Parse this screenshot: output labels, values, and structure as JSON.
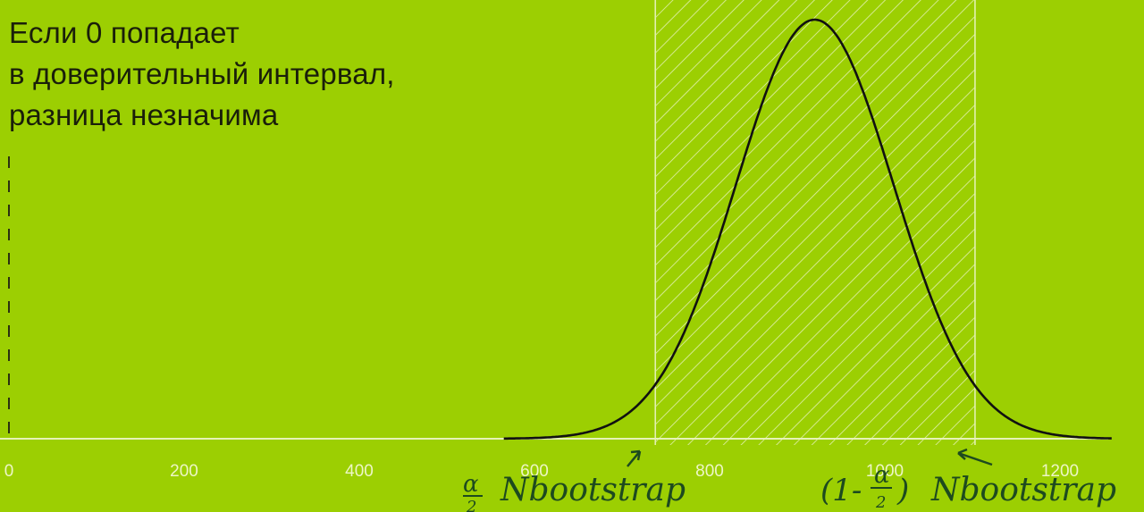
{
  "headline": {
    "lines": [
      "Если 0 попадает",
      "в доверительный интервал,",
      "разница незначима"
    ]
  },
  "colors": {
    "background": "#9ccf02",
    "curve": "#111111",
    "axis": "#e6f2b8",
    "hatch": "#e2f0b0",
    "annotation_ink": "#1d4a1f"
  },
  "annotations": {
    "lower_bound": "α/2 · Nbootstrap",
    "upper_bound": "(1 - α/2) · Nbootstrap"
  },
  "chart_data": {
    "type": "area",
    "title": "",
    "xlabel": "",
    "ylabel": "",
    "xlim": [
      0,
      1250
    ],
    "x_ticks": [
      0,
      200,
      400,
      600,
      800,
      1000,
      1200
    ],
    "x_tick_labels": [
      "0",
      "200",
      "400",
      "600",
      "800",
      "1000",
      "1200"
    ],
    "grid": false,
    "legend": "none",
    "zero_marker": {
      "x": 0,
      "style": "dashed-vertical"
    },
    "distribution": {
      "shape": "normal",
      "mean": 920,
      "sd": 90,
      "x_range": [
        565,
        1260
      ]
    },
    "confidence_interval": {
      "lower": 738,
      "upper": 1103,
      "fill": "hatched"
    }
  }
}
